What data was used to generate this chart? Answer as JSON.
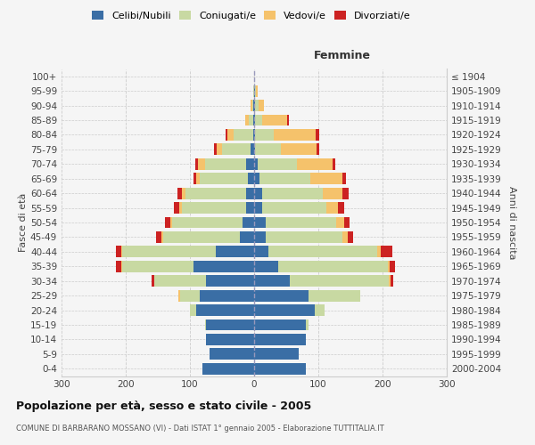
{
  "age_groups": [
    "0-4",
    "5-9",
    "10-14",
    "15-19",
    "20-24",
    "25-29",
    "30-34",
    "35-39",
    "40-44",
    "45-49",
    "50-54",
    "55-59",
    "60-64",
    "65-69",
    "70-74",
    "75-79",
    "80-84",
    "85-89",
    "90-94",
    "95-99",
    "100+"
  ],
  "birth_years": [
    "2000-2004",
    "1995-1999",
    "1990-1994",
    "1985-1989",
    "1980-1984",
    "1975-1979",
    "1970-1974",
    "1965-1969",
    "1960-1964",
    "1955-1959",
    "1950-1954",
    "1945-1949",
    "1940-1944",
    "1935-1939",
    "1930-1934",
    "1925-1929",
    "1920-1924",
    "1915-1919",
    "1910-1914",
    "1905-1909",
    "≤ 1904"
  ],
  "male": {
    "celibi": [
      80,
      70,
      75,
      75,
      90,
      85,
      75,
      95,
      60,
      22,
      18,
      12,
      12,
      10,
      12,
      5,
      2,
      1,
      1,
      0,
      0
    ],
    "coniugati": [
      0,
      0,
      0,
      2,
      10,
      30,
      80,
      110,
      145,
      120,
      110,
      100,
      95,
      75,
      65,
      45,
      30,
      8,
      2,
      1,
      0
    ],
    "vedovi": [
      0,
      0,
      0,
      0,
      0,
      3,
      0,
      2,
      2,
      3,
      3,
      5,
      5,
      5,
      10,
      8,
      10,
      5,
      2,
      0,
      0
    ],
    "divorziati": [
      0,
      0,
      0,
      0,
      0,
      0,
      5,
      8,
      8,
      8,
      8,
      8,
      8,
      5,
      5,
      5,
      2,
      0,
      0,
      0,
      0
    ]
  },
  "female": {
    "nubili": [
      80,
      70,
      80,
      80,
      95,
      85,
      55,
      38,
      22,
      18,
      18,
      12,
      12,
      8,
      5,
      2,
      1,
      2,
      2,
      1,
      0
    ],
    "coniugate": [
      0,
      0,
      0,
      5,
      15,
      80,
      155,
      170,
      170,
      120,
      110,
      100,
      95,
      80,
      62,
      40,
      30,
      10,
      5,
      2,
      0
    ],
    "vedove": [
      0,
      0,
      0,
      0,
      0,
      0,
      2,
      3,
      5,
      8,
      12,
      18,
      30,
      50,
      55,
      55,
      65,
      40,
      8,
      2,
      0
    ],
    "divorziate": [
      0,
      0,
      0,
      0,
      0,
      0,
      5,
      8,
      18,
      8,
      8,
      10,
      10,
      5,
      5,
      5,
      5,
      2,
      0,
      0,
      0
    ]
  },
  "colors": {
    "celibi_nubili": "#3a6ea5",
    "coniugati": "#c8d9a2",
    "vedovi": "#f5c26b",
    "divorziati": "#cc2222"
  },
  "title": "Popolazione per età, sesso e stato civile - 2005",
  "subtitle": "COMUNE DI BARBARANO MOSSANO (VI) - Dati ISTAT 1° gennaio 2005 - Elaborazione TUTTITALIA.IT",
  "xlabel_right": "Femmine",
  "ylabel_left": "Fasce di età",
  "ylabel_right": "Anni di nascita",
  "xlim": 300,
  "bg_color": "#f5f5f5",
  "grid_color": "#cccccc"
}
